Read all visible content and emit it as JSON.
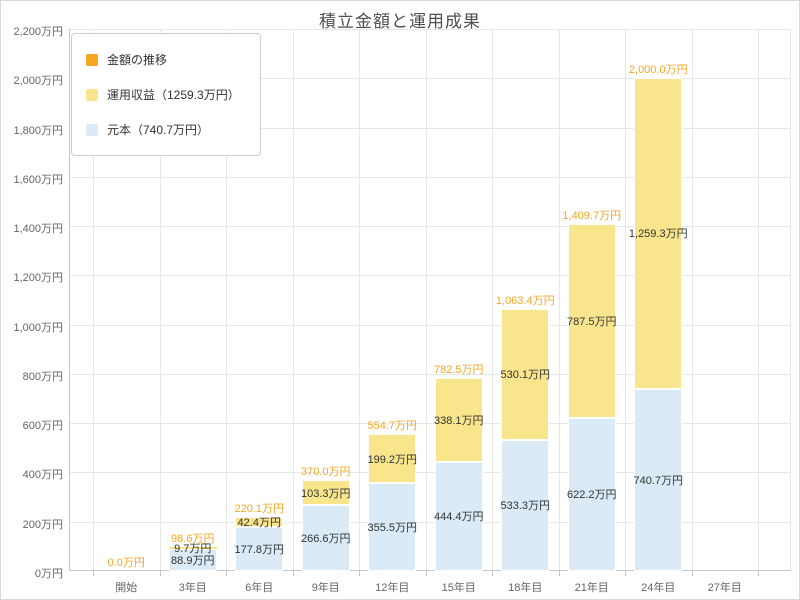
{
  "chart_data": {
    "type": "bar",
    "stacked": true,
    "title": "積立金額と運用成果",
    "categories": [
      "開始",
      "3年目",
      "6年目",
      "9年目",
      "12年目",
      "15年目",
      "18年目",
      "21年目",
      "24年目",
      "27年目"
    ],
    "series": [
      {
        "name": "元本",
        "color": "#daeaf6",
        "values": [
          0,
          88.9,
          177.8,
          266.6,
          355.5,
          444.4,
          533.3,
          622.2,
          740.7,
          null
        ],
        "labels": [
          "",
          "88.9万円",
          "177.8万円",
          "266.6万円",
          "355.5万円",
          "444.4万円",
          "533.3万円",
          "622.2万円",
          "740.7万円",
          ""
        ]
      },
      {
        "name": "運用収益",
        "color": "#f8e58c",
        "values": [
          0,
          9.7,
          42.4,
          103.3,
          199.2,
          338.1,
          530.1,
          787.5,
          1259.3,
          null
        ],
        "labels": [
          "",
          "9.7万円",
          "42.4万円",
          "103.3万円",
          "199.2万円",
          "338.1万円",
          "530.1万円",
          "787.5万円",
          "1,259.3万円",
          ""
        ]
      }
    ],
    "stack_labels": [
      "0.0万円",
      "98.6万円",
      "220.1万円",
      "370.0万円",
      "554.7万円",
      "782.5万円",
      "1,063.4万円",
      "1,409.7万円",
      "2,000.0万円",
      ""
    ],
    "ylim": [
      0,
      2200
    ],
    "ytick_step": 200,
    "ytick_labels": [
      "0万円",
      "200万円",
      "400万円",
      "600万円",
      "800万円",
      "1,000万円",
      "1,200万円",
      "1,400万円",
      "1,600万円",
      "1,800万円",
      "2,000万円",
      "2,200万円"
    ],
    "grid": true,
    "legend_position": "top-left",
    "colors": {
      "total_label": "#f5a623",
      "grid": "#e7e7e7",
      "axis": "#c6c6c6",
      "tick_text": "#666666",
      "value_label": "#333333"
    }
  },
  "legend": {
    "items": [
      {
        "label": "金額の推移",
        "color": "#f5a623"
      },
      {
        "label": "運用収益（1259.3万円）",
        "color": "#f8e58c"
      },
      {
        "label": "元本（740.7万円）",
        "color": "#daeaf6"
      }
    ]
  }
}
